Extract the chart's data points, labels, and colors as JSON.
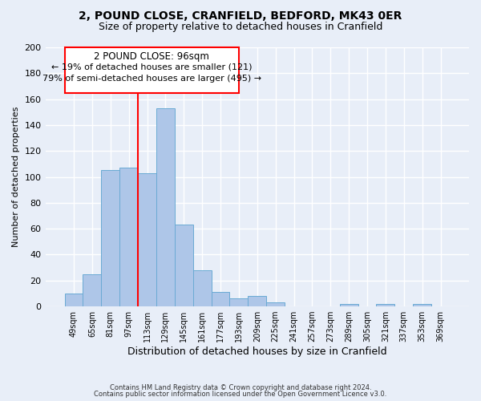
{
  "title1": "2, POUND CLOSE, CRANFIELD, BEDFORD, MK43 0ER",
  "title2": "Size of property relative to detached houses in Cranfield",
  "xlabel": "Distribution of detached houses by size in Cranfield",
  "ylabel": "Number of detached properties",
  "footer1": "Contains HM Land Registry data © Crown copyright and database right 2024.",
  "footer2": "Contains public sector information licensed under the Open Government Licence v3.0.",
  "bin_labels": [
    "49sqm",
    "65sqm",
    "81sqm",
    "97sqm",
    "113sqm",
    "129sqm",
    "145sqm",
    "161sqm",
    "177sqm",
    "193sqm",
    "209sqm",
    "225sqm",
    "241sqm",
    "257sqm",
    "273sqm",
    "289sqm",
    "305sqm",
    "321sqm",
    "337sqm",
    "353sqm",
    "369sqm"
  ],
  "bar_values": [
    10,
    25,
    105,
    107,
    103,
    153,
    63,
    28,
    11,
    6,
    8,
    3,
    0,
    0,
    0,
    2,
    0,
    2,
    0,
    2,
    0
  ],
  "bar_color": "#aec6e8",
  "bar_edge_color": "#6aaad4",
  "vline_x": 3.5,
  "vline_color": "red",
  "annotation_title": "2 POUND CLOSE: 96sqm",
  "annotation_line1": "← 19% of detached houses are smaller (121)",
  "annotation_line2": "79% of semi-detached houses are larger (495) →",
  "annotation_box_color": "red",
  "ylim": [
    0,
    200
  ],
  "yticks": [
    0,
    20,
    40,
    60,
    80,
    100,
    120,
    140,
    160,
    180,
    200
  ],
  "background_color": "#e8eef8",
  "plot_bg_color": "#e8eef8",
  "title1_fontsize": 10,
  "title2_fontsize": 9,
  "ylabel_fontsize": 8,
  "xlabel_fontsize": 9
}
